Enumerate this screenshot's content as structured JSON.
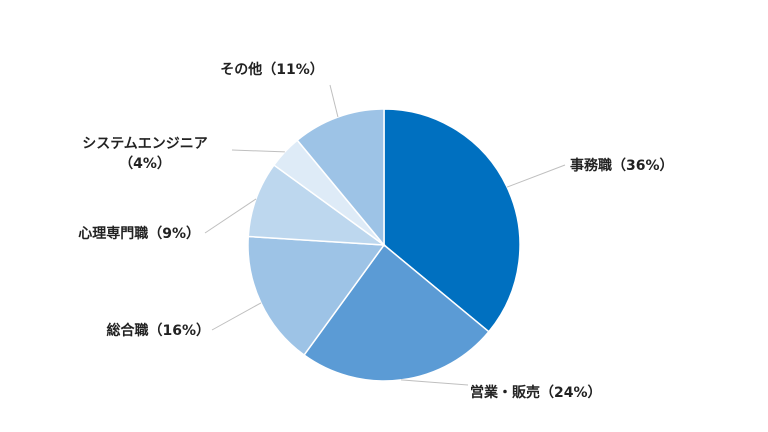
{
  "chart_data": {
    "type": "pie",
    "slices": [
      {
        "name": "事務職",
        "value": 36,
        "label": "事務職（36%）",
        "color": "#0070c0"
      },
      {
        "name": "営業・販売",
        "value": 24,
        "label": "営業・販売（24%）",
        "color": "#5b9bd5"
      },
      {
        "name": "総合職",
        "value": 16,
        "label": "総合職（16%）",
        "color": "#9dc3e6"
      },
      {
        "name": "心理専門職",
        "value": 9,
        "label": "心理専門職（9%）",
        "color": "#bdd7ee"
      },
      {
        "name": "システムエンジニア",
        "value": 4,
        "label": "システムエンジニア（4%）",
        "label_lines": [
          "システムエンジニア",
          "（4%）"
        ],
        "color": "#deebf7"
      },
      {
        "name": "その他",
        "value": 11,
        "label": "その他（11%）",
        "color": "#9dc3e6"
      }
    ],
    "start": "12 o'clock",
    "direction": "clockwise",
    "legend": "none",
    "labels": "outside with leader lines"
  }
}
